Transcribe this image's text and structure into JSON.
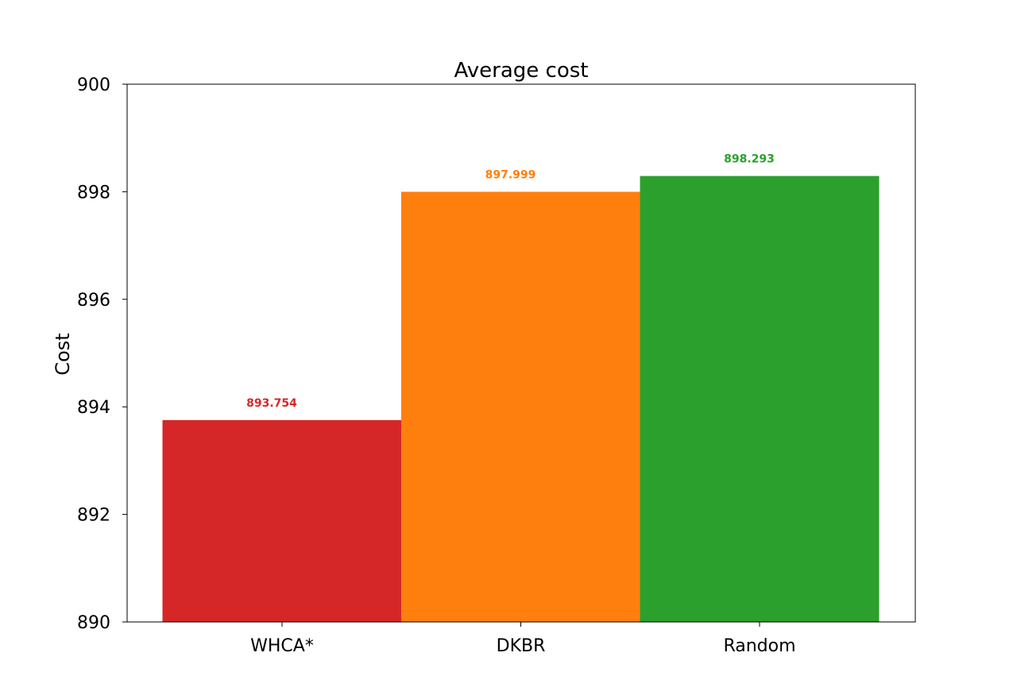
{
  "chart_data": {
    "type": "bar",
    "title": "Average cost",
    "xlabel": "",
    "ylabel": "Cost",
    "categories": [
      "WHCA*",
      "DKBR",
      "Random"
    ],
    "values": [
      893.754,
      897.999,
      898.293
    ],
    "data_labels": [
      "893.754",
      "897.999",
      "898.293"
    ],
    "colors": [
      "#d62728",
      "#ff7f0e",
      "#2ca02c"
    ],
    "ylim": [
      890,
      900
    ],
    "yticks": [
      890,
      892,
      894,
      896,
      898,
      900
    ],
    "ytick_labels": [
      "890",
      "892",
      "894",
      "896",
      "898",
      "900"
    ],
    "grid": false,
    "legend": false
  }
}
